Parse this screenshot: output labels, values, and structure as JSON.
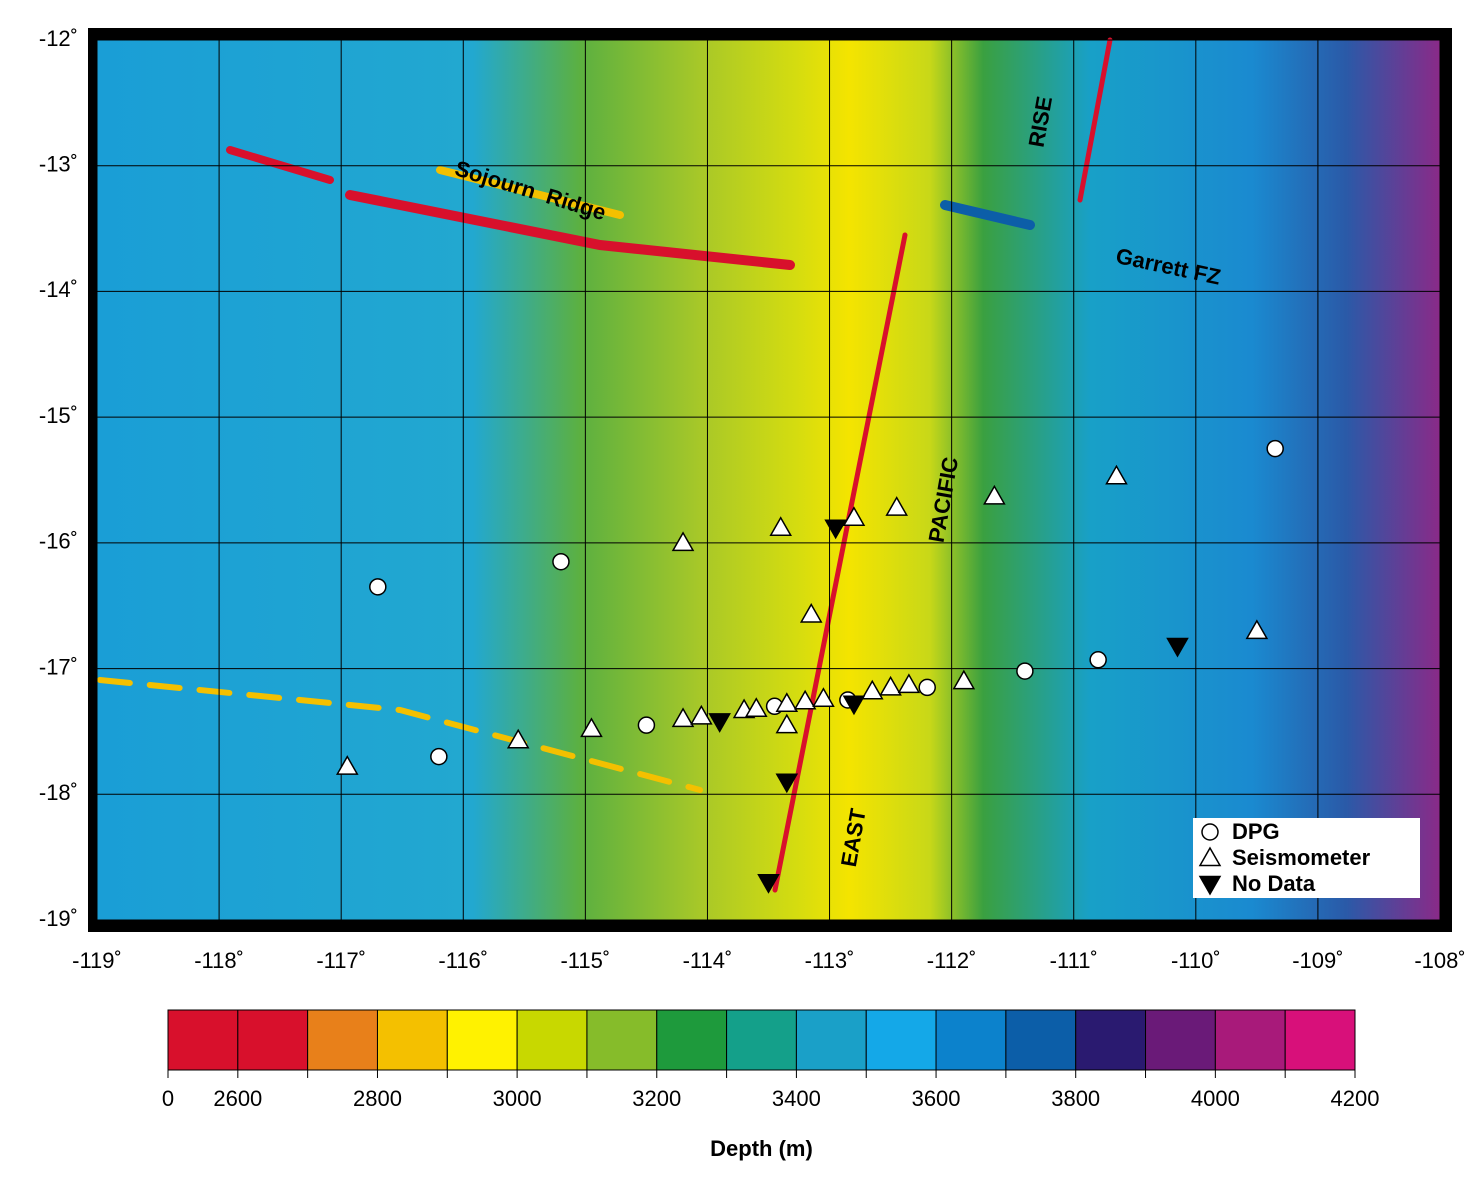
{
  "map": {
    "xticks": [
      {
        "value": -119,
        "label": "-119˚"
      },
      {
        "value": -118,
        "label": "-118˚"
      },
      {
        "value": -117,
        "label": "-117˚"
      },
      {
        "value": -116,
        "label": "-116˚"
      },
      {
        "value": -115,
        "label": "-115˚"
      },
      {
        "value": -114,
        "label": "-114˚"
      },
      {
        "value": -113,
        "label": "-113˚"
      },
      {
        "value": -112,
        "label": "-112˚"
      },
      {
        "value": -111,
        "label": "-111˚"
      },
      {
        "value": -110,
        "label": "-110˚"
      },
      {
        "value": -109,
        "label": "-109˚"
      },
      {
        "value": -108,
        "label": "-108˚"
      }
    ],
    "yticks": [
      {
        "value": -12,
        "label": "-12˚"
      },
      {
        "value": -13,
        "label": "-13˚"
      },
      {
        "value": -14,
        "label": "-14˚"
      },
      {
        "value": -15,
        "label": "-15˚"
      },
      {
        "value": -16,
        "label": "-16˚"
      },
      {
        "value": -17,
        "label": "-17˚"
      },
      {
        "value": -18,
        "label": "-18˚"
      },
      {
        "value": -19,
        "label": "-19˚"
      }
    ],
    "xlim": [
      -119,
      -108
    ],
    "ylim": [
      -19,
      -12
    ],
    "features": [
      "Sojourn  Ridge",
      "RISE",
      "Garrett FZ",
      "PACIFIC",
      "EAST"
    ],
    "stations": [
      {
        "name": "DPG",
        "shape": "circle",
        "color": "#ffffff",
        "lon": [
          -116.7,
          -115.2,
          -116.2,
          -114.5,
          -113.45,
          -112.85,
          -112.2,
          -111.4,
          -110.8,
          -109.35
        ],
        "lat": [
          -16.35,
          -16.15,
          -17.7,
          -17.45,
          -17.3,
          -17.25,
          -17.15,
          -17.02,
          -16.93,
          -15.25
        ]
      },
      {
        "name": "Seismometer",
        "shape": "triangle",
        "color": "#ffffff",
        "lon": [
          -116.95,
          -115.55,
          -114.95,
          -114.2,
          -114.05,
          -113.7,
          -113.6,
          -113.35,
          -113.2,
          -113.05,
          -112.65,
          -112.5,
          -112.35,
          -111.9,
          -113.35,
          -113.15,
          -113.4,
          -112.8,
          -112.45,
          -111.65,
          -110.65,
          -109.5,
          -114.2
        ],
        "lat": [
          -17.78,
          -17.57,
          -17.48,
          -17.4,
          -17.38,
          -17.33,
          -17.32,
          -17.28,
          -17.26,
          -17.24,
          -17.18,
          -17.15,
          -17.13,
          -17.1,
          -17.45,
          -16.57,
          -15.88,
          -15.8,
          -15.72,
          -15.63,
          -15.47,
          -16.7,
          -16.0
        ]
      },
      {
        "name": "No Data",
        "shape": "down-triangle",
        "color": "#000000",
        "lon": [
          -112.95,
          -113.9,
          -113.35,
          -113.5,
          -110.15,
          -112.8
        ],
        "lat": [
          -15.88,
          -17.42,
          -17.9,
          -18.7,
          -16.82,
          -17.28
        ]
      }
    ],
    "colorbar": {
      "label": "Depth (m)",
      "boundaries": [
        0,
        2600,
        2700,
        2800,
        2900,
        3000,
        3100,
        3200,
        3300,
        3400,
        3500,
        3600,
        3700,
        3800,
        3900,
        4000,
        4100,
        4200
      ],
      "colors": [
        "#d8102c",
        "#d8102c",
        "#e8801a",
        "#f4c000",
        "#fff200",
        "#c8d800",
        "#86bc2a",
        "#1e9a3c",
        "#14a08a",
        "#1aa0c8",
        "#14a8e8",
        "#0c82cc",
        "#0c5ea8",
        "#2a1a70",
        "#6a1a78",
        "#a81a7a",
        "#d8107a"
      ],
      "ticks": [
        0,
        2600,
        2800,
        3000,
        3200,
        3400,
        3600,
        3800,
        4000,
        4200
      ]
    }
  }
}
